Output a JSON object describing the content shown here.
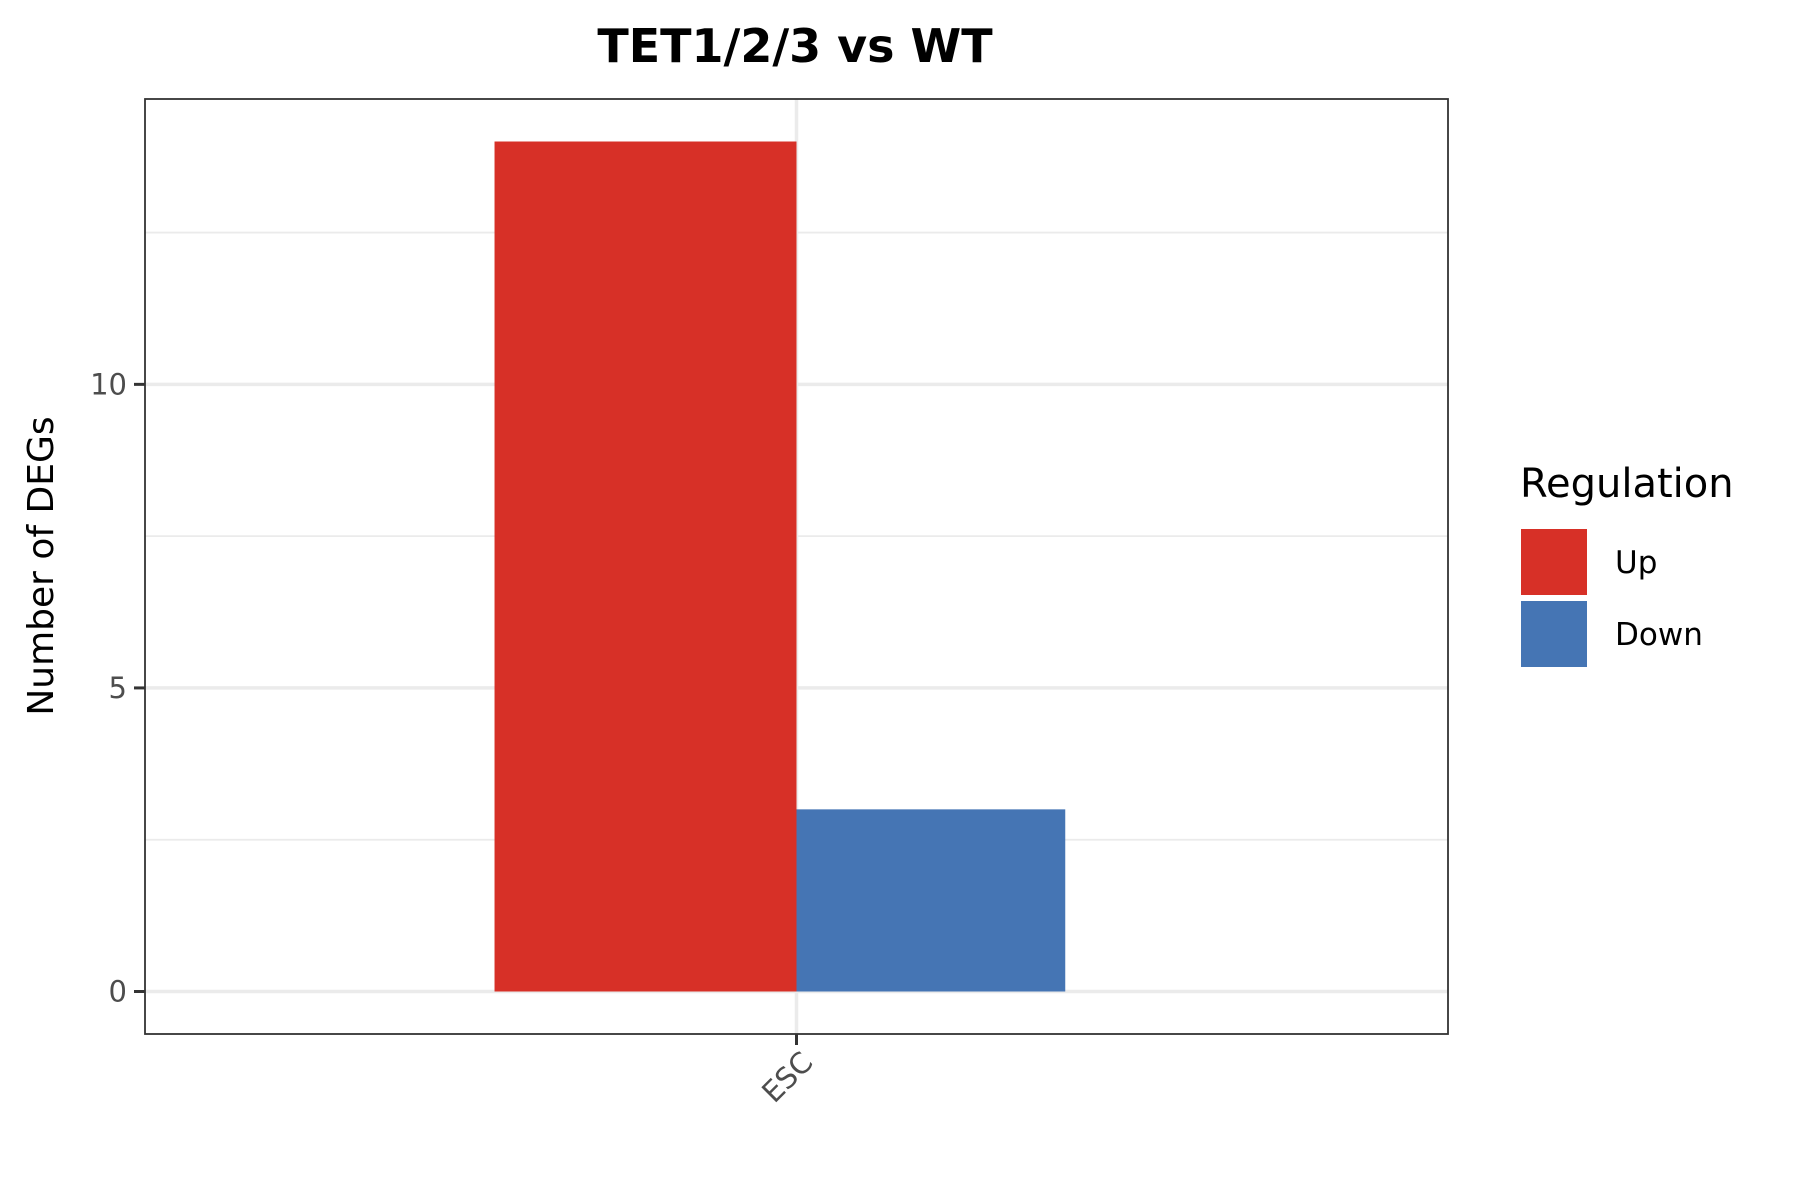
{
  "chart_data": {
    "type": "bar",
    "title": "TET1/2/3 vs WT",
    "xlabel": "",
    "ylabel": "Number of DEGs",
    "categories": [
      "ESC"
    ],
    "series": [
      {
        "name": "Up",
        "values": [
          14
        ],
        "color": "#D73027"
      },
      {
        "name": "Down",
        "values": [
          3
        ],
        "color": "#4575B4"
      }
    ],
    "ylim": [
      -0.7,
      14.7
    ],
    "yticks": [
      0,
      5,
      10
    ],
    "ytick_labels": [
      "0",
      "5",
      "10"
    ],
    "grid": true,
    "x_tick_label_rotation": "45",
    "legend": {
      "title": "Regulation",
      "placement": "right",
      "items": [
        "Up",
        "Down"
      ]
    }
  }
}
